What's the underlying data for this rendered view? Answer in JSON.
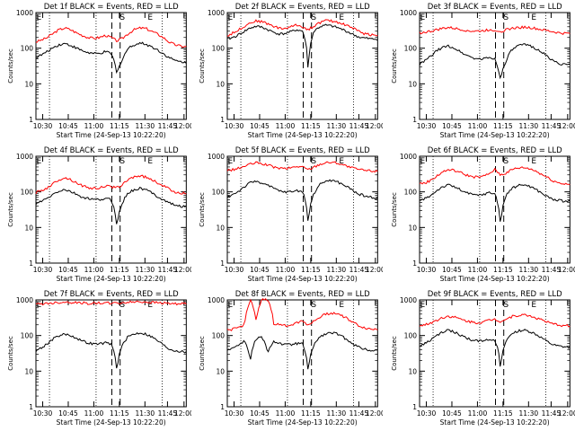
{
  "chart_data": [
    {
      "type": "line",
      "title": "Det 1f BLACK = Events, RED = LLD",
      "xlabel": "Start Time (24-Sep-13 10:22:20)",
      "ylabel": "Counts/sec",
      "x_ticks": [
        "10:30",
        "10:45",
        "11:00",
        "11:15",
        "11:30",
        "11:45",
        "12:00"
      ],
      "y_ticks": [
        "1",
        "10",
        "100",
        "1000"
      ],
      "y_scale": "log",
      "ylim": [
        1,
        1000
      ],
      "markers": [
        "E",
        "S",
        "E"
      ],
      "series": [
        {
          "color": "#ff0000",
          "values": [
            150,
            170,
            200,
            260,
            330,
            370,
            330,
            270,
            230,
            200,
            190,
            200,
            230,
            200,
            160,
            190,
            260,
            330,
            370,
            360,
            300,
            250,
            200,
            150,
            125,
            115,
            110
          ]
        },
        {
          "color": "#000000",
          "values": [
            55,
            65,
            80,
            105,
            125,
            135,
            120,
            100,
            85,
            75,
            70,
            70,
            80,
            70,
            18,
            50,
            100,
            125,
            140,
            130,
            110,
            90,
            70,
            55,
            45,
            42,
            40
          ]
        }
      ]
    },
    {
      "type": "line",
      "title": "Det 2f BLACK = Events, RED = LLD",
      "xlabel": "Start Time (24-Sep-13 10:22:20)",
      "ylabel": "Counts/sec",
      "x_ticks": [
        "10:30",
        "10:45",
        "11:00",
        "11:15",
        "11:30",
        "11:45",
        "12:00"
      ],
      "y_ticks": [
        "1",
        "10",
        "100",
        "1000"
      ],
      "y_scale": "log",
      "ylim": [
        1,
        1000
      ],
      "markers": [
        "E",
        "S",
        "E"
      ],
      "series": [
        {
          "color": "#ff0000",
          "values": [
            220,
            270,
            330,
            420,
            520,
            580,
            560,
            480,
            420,
            360,
            360,
            400,
            450,
            400,
            330,
            420,
            520,
            600,
            580,
            540,
            480,
            420,
            350,
            280,
            250,
            240,
            230
          ]
        },
        {
          "color": "#000000",
          "values": [
            180,
            200,
            240,
            300,
            370,
            410,
            390,
            330,
            280,
            250,
            260,
            290,
            330,
            300,
            15,
            300,
            400,
            440,
            420,
            380,
            330,
            280,
            230,
            200,
            190,
            180,
            180
          ]
        }
      ]
    },
    {
      "type": "line",
      "title": "Det 3f BLACK = Events, RED = LLD",
      "xlabel": "Start Time (24-Sep-13 10:22:20)",
      "ylabel": "Counts/sec",
      "x_ticks": [
        "10:30",
        "10:45",
        "11:00",
        "11:15",
        "11:30",
        "11:45",
        "12:00"
      ],
      "y_ticks": [
        "1",
        "10",
        "100",
        "1000"
      ],
      "y_scale": "log",
      "ylim": [
        1,
        1000
      ],
      "markers": [
        "E",
        "S",
        "E"
      ],
      "series": [
        {
          "color": "#ff0000",
          "values": [
            270,
            280,
            300,
            330,
            360,
            380,
            360,
            340,
            320,
            300,
            300,
            310,
            330,
            320,
            300,
            330,
            360,
            380,
            390,
            380,
            360,
            330,
            310,
            290,
            270,
            260,
            260
          ]
        },
        {
          "color": "#000000",
          "values": [
            35,
            45,
            60,
            85,
            105,
            115,
            100,
            80,
            65,
            55,
            50,
            50,
            55,
            50,
            12,
            45,
            90,
            115,
            125,
            120,
            100,
            80,
            60,
            45,
            38,
            35,
            33
          ]
        }
      ]
    },
    {
      "type": "line",
      "title": "Det 4f BLACK = Events, RED = LLD",
      "xlabel": "Start Time (24-Sep-13 10:22:20)",
      "ylabel": "Counts/sec",
      "x_ticks": [
        "10:30",
        "10:45",
        "11:00",
        "11:15",
        "11:30",
        "11:45",
        "12:00"
      ],
      "y_ticks": [
        "1",
        "10",
        "100",
        "1000"
      ],
      "y_scale": "log",
      "ylim": [
        1,
        1000
      ],
      "markers": [
        "E",
        "S",
        "E"
      ],
      "series": [
        {
          "color": "#ff0000",
          "values": [
            95,
            110,
            130,
            170,
            220,
            250,
            220,
            180,
            150,
            130,
            125,
            130,
            145,
            140,
            130,
            160,
            220,
            270,
            280,
            260,
            220,
            180,
            150,
            120,
            100,
            95,
            90
          ]
        },
        {
          "color": "#000000",
          "values": [
            45,
            55,
            65,
            85,
            105,
            115,
            100,
            85,
            70,
            65,
            60,
            60,
            65,
            60,
            10,
            50,
            95,
            115,
            125,
            115,
            95,
            75,
            60,
            50,
            42,
            40,
            38
          ]
        }
      ]
    },
    {
      "type": "line",
      "title": "Det 5f BLACK = Events, RED = LLD",
      "xlabel": "Start Time (24-Sep-13 10:22:20)",
      "ylabel": "Counts/sec",
      "x_ticks": [
        "10:30",
        "10:45",
        "11:00",
        "11:15",
        "11:30",
        "11:45",
        "12:00"
      ],
      "y_ticks": [
        "1",
        "10",
        "100",
        "1000"
      ],
      "y_scale": "log",
      "ylim": [
        1,
        1000
      ],
      "markers": [
        "E",
        "S",
        "E"
      ],
      "series": [
        {
          "color": "#ff0000",
          "values": [
            400,
            420,
            460,
            520,
            600,
            650,
            620,
            560,
            500,
            460,
            450,
            470,
            520,
            500,
            420,
            500,
            600,
            660,
            680,
            650,
            580,
            500,
            450,
            420,
            400,
            390,
            380
          ]
        },
        {
          "color": "#000000",
          "values": [
            70,
            85,
            105,
            140,
            180,
            200,
            180,
            150,
            125,
            105,
            100,
            100,
            110,
            100,
            12,
            90,
            160,
            200,
            210,
            190,
            160,
            130,
            100,
            85,
            75,
            70,
            68
          ]
        }
      ]
    },
    {
      "type": "line",
      "title": "Det 6f BLACK = Events, RED = LLD",
      "xlabel": "Start Time (24-Sep-13 10:22:20)",
      "ylabel": "Counts/sec",
      "x_ticks": [
        "10:30",
        "10:45",
        "11:00",
        "11:15",
        "11:30",
        "11:45",
        "12:00"
      ],
      "y_ticks": [
        "1",
        "10",
        "100",
        "1000"
      ],
      "y_scale": "log",
      "ylim": [
        1,
        1000
      ],
      "markers": [
        "E",
        "S",
        "E"
      ],
      "series": [
        {
          "color": "#ff0000",
          "values": [
            170,
            180,
            210,
            280,
            360,
            420,
            400,
            350,
            300,
            270,
            260,
            270,
            320,
            420,
            300,
            340,
            420,
            470,
            480,
            450,
            390,
            320,
            260,
            210,
            180,
            170,
            165
          ]
        },
        {
          "color": "#000000",
          "values": [
            55,
            65,
            80,
            110,
            140,
            155,
            140,
            115,
            95,
            85,
            80,
            85,
            95,
            90,
            10,
            80,
            125,
            150,
            160,
            145,
            120,
            95,
            75,
            62,
            58,
            55,
            55
          ]
        }
      ]
    },
    {
      "type": "line",
      "title": "Det 7f BLACK = Events, RED = LLD",
      "xlabel": "Start Time (24-Sep-13 10:22:20)",
      "ylabel": "Counts/sec",
      "x_ticks": [
        "10:30",
        "10:45",
        "11:00",
        "11:15",
        "11:30",
        "11:45",
        "12:00"
      ],
      "y_ticks": [
        "1",
        "10",
        "100",
        "1000"
      ],
      "y_scale": "log",
      "ylim": [
        1,
        1000
      ],
      "markers": [
        "E",
        "S",
        "E"
      ],
      "series": [
        {
          "color": "#ff0000",
          "values": [
            750,
            780,
            800,
            820,
            850,
            870,
            860,
            840,
            820,
            800,
            800,
            810,
            830,
            820,
            800,
            830,
            860,
            880,
            890,
            880,
            860,
            840,
            820,
            800,
            790,
            780,
            780
          ]
        },
        {
          "color": "#000000",
          "values": [
            38,
            45,
            60,
            80,
            100,
            110,
            100,
            85,
            70,
            62,
            58,
            58,
            62,
            58,
            10,
            55,
            95,
            110,
            120,
            110,
            92,
            72,
            55,
            42,
            38,
            36,
            34
          ]
        }
      ]
    },
    {
      "type": "line",
      "title": "Det 8f BLACK = Events, RED = LLD",
      "xlabel": "Start Time (24-Sep-13 10:22:20)",
      "ylabel": "Counts/sec",
      "x_ticks": [
        "10:30",
        "10:45",
        "11:00",
        "11:15",
        "11:30",
        "11:45",
        "12:00"
      ],
      "y_ticks": [
        "1",
        "10",
        "100",
        "1000"
      ],
      "y_scale": "log",
      "ylim": [
        1,
        1000
      ],
      "markers": [
        "E",
        "S",
        "E"
      ],
      "series": [
        {
          "color": "#ff0000",
          "values": [
            140,
            150,
            170,
            200,
            1000,
            230,
            1000,
            1000,
            220,
            200,
            190,
            200,
            230,
            260,
            200,
            250,
            330,
            400,
            430,
            410,
            350,
            280,
            220,
            180,
            160,
            150,
            150
          ]
        },
        {
          "color": "#000000",
          "values": [
            40,
            45,
            55,
            70,
            20,
            80,
            90,
            30,
            70,
            60,
            55,
            55,
            60,
            58,
            8,
            55,
            90,
            110,
            120,
            110,
            90,
            72,
            55,
            45,
            40,
            38,
            38
          ]
        }
      ]
    },
    {
      "type": "line",
      "title": "Det 9f BLACK = Events, RED = LLD",
      "xlabel": "Start Time (24-Sep-13 10:22:20)",
      "ylabel": "Counts/sec",
      "x_ticks": [
        "10:30",
        "10:45",
        "11:00",
        "11:15",
        "11:30",
        "11:45",
        "12:00"
      ],
      "y_ticks": [
        "1",
        "10",
        "100",
        "1000"
      ],
      "y_scale": "log",
      "ylim": [
        1,
        1000
      ],
      "markers": [
        "E",
        "S",
        "E"
      ],
      "series": [
        {
          "color": "#ff0000",
          "values": [
            190,
            200,
            230,
            270,
            320,
            350,
            330,
            290,
            260,
            240,
            230,
            240,
            270,
            290,
            250,
            290,
            340,
            370,
            380,
            360,
            320,
            280,
            240,
            210,
            200,
            190,
            190
          ]
        },
        {
          "color": "#000000",
          "values": [
            50,
            60,
            75,
            100,
            125,
            140,
            125,
            105,
            85,
            75,
            70,
            72,
            80,
            75,
            10,
            70,
            115,
            135,
            140,
            130,
            110,
            88,
            68,
            55,
            50,
            48,
            46
          ]
        }
      ]
    }
  ]
}
